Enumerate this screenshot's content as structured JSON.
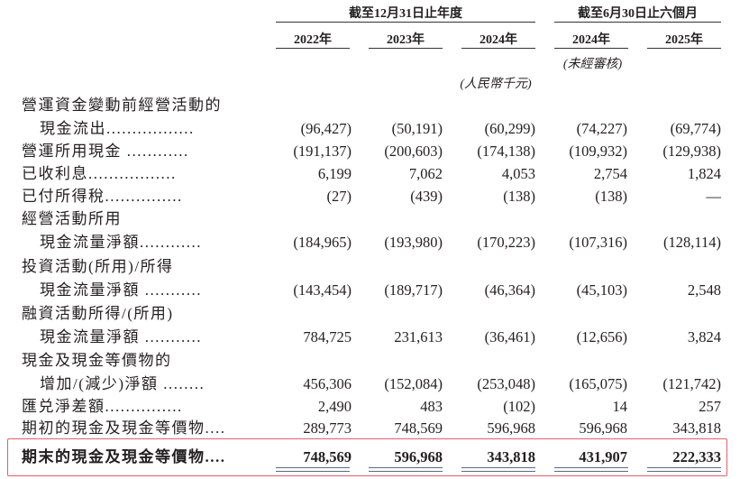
{
  "header": {
    "group1": "截至12月31日止年度",
    "group2": "截至6月30日止六個月",
    "years": [
      "2022年",
      "2023年",
      "2024年",
      "2024年",
      "2025年"
    ],
    "unaudited": "(未經審核)",
    "unit": "(人民幣千元)"
  },
  "rows": [
    {
      "label": "營運資金變動前經營活動的",
      "values": []
    },
    {
      "label": "現金流出.................",
      "values": [
        "(96,427)",
        "(50,191)",
        "(60,299)",
        "(74,227)",
        "(69,774)"
      ],
      "indent": true
    },
    {
      "label": "營運所用現金 ............",
      "values": [
        "(191,137)",
        "(200,603)",
        "(174,138)",
        "(109,932)",
        "(129,938)"
      ]
    },
    {
      "label": "已收利息.................",
      "values": [
        "6,199",
        "7,062",
        "4,053",
        "2,754",
        "1,824"
      ]
    },
    {
      "label": "已付所得稅...............",
      "values": [
        "(27)",
        "(439)",
        "(138)",
        "(138)",
        "—"
      ]
    },
    {
      "label": "經營活動所用",
      "values": []
    },
    {
      "label": "現金流量淨額............",
      "values": [
        "(184,965)",
        "(193,980)",
        "(170,223)",
        "(107,316)",
        "(128,114)"
      ],
      "indent": true
    },
    {
      "label": "投資活動(所用)/所得",
      "values": []
    },
    {
      "label": "現金流量淨額 ...........",
      "values": [
        "(143,454)",
        "(189,717)",
        "(46,364)",
        "(45,103)",
        "2,548"
      ],
      "indent": true
    },
    {
      "label": "融資活動所得/(所用)",
      "values": []
    },
    {
      "label": "現金流量淨額 ...........",
      "values": [
        "784,725",
        "231,613",
        "(36,461)",
        "(12,656)",
        "3,824"
      ],
      "indent": true
    },
    {
      "label": "現金及現金等價物的",
      "values": []
    },
    {
      "label": "增加/(減少)淨額 ........",
      "values": [
        "456,306",
        "(152,084)",
        "(253,048)",
        "(165,075)",
        "(121,742)"
      ],
      "indent": true
    },
    {
      "label": "匯兑淨差額...............",
      "values": [
        "2,490",
        "483",
        "(102)",
        "14",
        "257"
      ]
    },
    {
      "label": "期初的現金及現金等價物....",
      "values": [
        "289,773",
        "748,569",
        "596,968",
        "596,968",
        "343,818"
      ]
    },
    {
      "label": "期末的現金及現金等價物....",
      "values": [
        "748,569",
        "596,968",
        "343,818",
        "431,907",
        "222,333"
      ],
      "bold": true
    }
  ],
  "colors": {
    "highlight_box": "#e0606a"
  }
}
